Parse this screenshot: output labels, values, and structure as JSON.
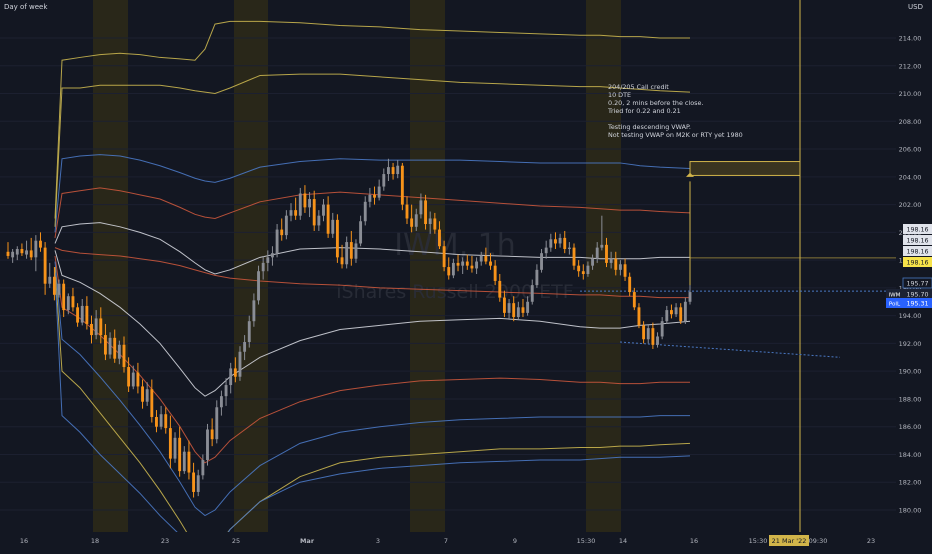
{
  "header": {
    "left_label": "Day of week",
    "currency": "USD"
  },
  "watermark": {
    "symbol": "IWM, 1h",
    "name": "iShares Russell 2000 ETF"
  },
  "annotation": {
    "lines": [
      "204/205 Call credit",
      "10 DTE",
      "0.20, 2 mins before the close.",
      "Tried for 0.22 and 0.21",
      "",
      "Testing descending VWAP.",
      "Not testing VWAP on M2K or RTY yet 1980"
    ]
  },
  "chart_data": {
    "type": "candlestick",
    "ylim": [
      178.9,
      216.2
    ],
    "y_ticks": [
      "180.00",
      "182.00",
      "184.00",
      "186.00",
      "188.00",
      "190.00",
      "192.00",
      "194.00",
      "196.00",
      "198.00",
      "200.00",
      "202.00",
      "204.00",
      "206.00",
      "208.00",
      "210.00",
      "212.00",
      "214.00"
    ],
    "x_ticks": [
      "16",
      "18",
      "23",
      "25",
      "Mar",
      "3",
      "7",
      "9",
      "15:30",
      "14",
      "16",
      "15:30",
      "21 Mar '22",
      "09:30",
      "23"
    ],
    "highlighted_x_label": "21 Mar '22",
    "price_labels": [
      {
        "value": "198.16",
        "style": "plain"
      },
      {
        "value": "198.16",
        "style": "plain"
      },
      {
        "value": "198.16",
        "style": "plain"
      },
      {
        "value": "198.16",
        "style": "yellow"
      },
      {
        "value": "195.77",
        "style": "outline"
      },
      {
        "value": "195.70",
        "prefix": "IWM",
        "style": "dark"
      },
      {
        "value": "195.31",
        "prefix": "PoIL",
        "style": "blue"
      }
    ],
    "candles": [
      {
        "o": 198.6,
        "h": 199.3,
        "l": 198.1,
        "c": 198.3,
        "up": false
      },
      {
        "o": 198.2,
        "h": 198.8,
        "l": 197.8,
        "c": 198.6,
        "up": true
      },
      {
        "o": 198.4,
        "h": 199.0,
        "l": 198.0,
        "c": 198.8,
        "up": true
      },
      {
        "o": 198.8,
        "h": 199.2,
        "l": 198.3,
        "c": 198.5,
        "up": false
      },
      {
        "o": 198.4,
        "h": 199.4,
        "l": 198.1,
        "c": 198.7,
        "up": true
      },
      {
        "o": 198.7,
        "h": 199.6,
        "l": 198.0,
        "c": 198.2,
        "up": false
      },
      {
        "o": 198.2,
        "h": 199.8,
        "l": 197.2,
        "c": 199.4,
        "up": true
      },
      {
        "o": 199.4,
        "h": 200.0,
        "l": 198.6,
        "c": 198.9,
        "up": false
      },
      {
        "o": 198.9,
        "h": 199.3,
        "l": 195.5,
        "c": 196.3,
        "up": false
      },
      {
        "o": 196.3,
        "h": 197.8,
        "l": 196.0,
        "c": 196.8,
        "up": true
      },
      {
        "o": 196.8,
        "h": 197.5,
        "l": 195.1,
        "c": 195.5,
        "up": false
      },
      {
        "o": 195.5,
        "h": 196.6,
        "l": 195.3,
        "c": 196.3,
        "up": true
      },
      {
        "o": 196.3,
        "h": 196.6,
        "l": 193.9,
        "c": 194.4,
        "up": false
      },
      {
        "o": 194.4,
        "h": 195.6,
        "l": 194.1,
        "c": 195.4,
        "up": true
      },
      {
        "o": 195.4,
        "h": 196.0,
        "l": 194.3,
        "c": 194.6,
        "up": false
      },
      {
        "o": 194.6,
        "h": 194.9,
        "l": 193.2,
        "c": 193.5,
        "up": false
      },
      {
        "o": 193.5,
        "h": 195.2,
        "l": 193.3,
        "c": 194.7,
        "up": true
      },
      {
        "o": 194.7,
        "h": 195.4,
        "l": 193.0,
        "c": 193.4,
        "up": false
      },
      {
        "o": 193.4,
        "h": 194.0,
        "l": 192.0,
        "c": 192.6,
        "up": false
      },
      {
        "o": 192.6,
        "h": 194.4,
        "l": 192.3,
        "c": 193.8,
        "up": true
      },
      {
        "o": 193.8,
        "h": 194.6,
        "l": 192.0,
        "c": 192.6,
        "up": false
      },
      {
        "o": 192.6,
        "h": 193.4,
        "l": 190.8,
        "c": 191.2,
        "up": false
      },
      {
        "o": 191.2,
        "h": 192.8,
        "l": 190.9,
        "c": 192.4,
        "up": true
      },
      {
        "o": 192.4,
        "h": 193.0,
        "l": 190.6,
        "c": 190.9,
        "up": false
      },
      {
        "o": 190.9,
        "h": 192.2,
        "l": 190.5,
        "c": 191.9,
        "up": true
      },
      {
        "o": 191.9,
        "h": 192.5,
        "l": 189.9,
        "c": 190.3,
        "up": false
      },
      {
        "o": 190.3,
        "h": 191.0,
        "l": 188.5,
        "c": 188.9,
        "up": false
      },
      {
        "o": 188.9,
        "h": 190.4,
        "l": 188.7,
        "c": 189.9,
        "up": true
      },
      {
        "o": 189.9,
        "h": 190.6,
        "l": 188.4,
        "c": 188.9,
        "up": false
      },
      {
        "o": 188.9,
        "h": 189.4,
        "l": 187.3,
        "c": 187.8,
        "up": false
      },
      {
        "o": 187.8,
        "h": 189.2,
        "l": 187.5,
        "c": 188.7,
        "up": true
      },
      {
        "o": 188.7,
        "h": 189.4,
        "l": 186.3,
        "c": 186.7,
        "up": false
      },
      {
        "o": 186.7,
        "h": 187.2,
        "l": 185.6,
        "c": 186.0,
        "up": false
      },
      {
        "o": 186.0,
        "h": 187.5,
        "l": 185.8,
        "c": 186.9,
        "up": true
      },
      {
        "o": 186.9,
        "h": 187.4,
        "l": 185.5,
        "c": 185.9,
        "up": false
      },
      {
        "o": 185.9,
        "h": 186.8,
        "l": 183.0,
        "c": 183.7,
        "up": false
      },
      {
        "o": 183.7,
        "h": 185.6,
        "l": 183.4,
        "c": 185.2,
        "up": true
      },
      {
        "o": 185.2,
        "h": 186.0,
        "l": 182.4,
        "c": 182.8,
        "up": false
      },
      {
        "o": 182.8,
        "h": 184.6,
        "l": 182.6,
        "c": 184.2,
        "up": true
      },
      {
        "o": 184.2,
        "h": 185.0,
        "l": 182.2,
        "c": 182.7,
        "up": false
      },
      {
        "o": 182.7,
        "h": 183.4,
        "l": 180.9,
        "c": 181.3,
        "up": false
      },
      {
        "o": 181.3,
        "h": 182.9,
        "l": 181.0,
        "c": 182.5,
        "up": true
      },
      {
        "o": 182.5,
        "h": 184.0,
        "l": 182.2,
        "c": 183.6,
        "up": true
      },
      {
        "o": 183.6,
        "h": 186.2,
        "l": 183.2,
        "c": 185.8,
        "up": true
      },
      {
        "o": 185.8,
        "h": 186.6,
        "l": 184.6,
        "c": 185.1,
        "up": false
      },
      {
        "o": 185.1,
        "h": 187.9,
        "l": 184.8,
        "c": 187.4,
        "up": true
      },
      {
        "o": 187.4,
        "h": 188.6,
        "l": 186.8,
        "c": 188.2,
        "up": true
      },
      {
        "o": 188.2,
        "h": 189.5,
        "l": 187.5,
        "c": 189.0,
        "up": true
      },
      {
        "o": 189.0,
        "h": 190.6,
        "l": 188.4,
        "c": 190.2,
        "up": true
      },
      {
        "o": 190.2,
        "h": 191.0,
        "l": 189.2,
        "c": 189.6,
        "up": false
      },
      {
        "o": 189.6,
        "h": 191.8,
        "l": 189.3,
        "c": 191.4,
        "up": true
      },
      {
        "o": 191.4,
        "h": 192.6,
        "l": 190.8,
        "c": 192.1,
        "up": true
      },
      {
        "o": 192.1,
        "h": 194.0,
        "l": 191.7,
        "c": 193.6,
        "up": true
      },
      {
        "o": 193.6,
        "h": 195.6,
        "l": 193.2,
        "c": 195.1,
        "up": true
      },
      {
        "o": 195.1,
        "h": 197.6,
        "l": 194.8,
        "c": 197.2,
        "up": true
      },
      {
        "o": 197.2,
        "h": 198.3,
        "l": 196.6,
        "c": 197.8,
        "up": true
      },
      {
        "o": 197.8,
        "h": 198.7,
        "l": 197.2,
        "c": 198.2,
        "up": true
      },
      {
        "o": 198.2,
        "h": 199.0,
        "l": 197.6,
        "c": 198.5,
        "up": true
      },
      {
        "o": 198.5,
        "h": 200.6,
        "l": 198.2,
        "c": 200.2,
        "up": true
      },
      {
        "o": 200.2,
        "h": 201.0,
        "l": 199.4,
        "c": 199.8,
        "up": false
      },
      {
        "o": 199.8,
        "h": 201.6,
        "l": 199.5,
        "c": 201.2,
        "up": true
      },
      {
        "o": 201.2,
        "h": 202.1,
        "l": 200.8,
        "c": 201.6,
        "up": true
      },
      {
        "o": 201.6,
        "h": 202.5,
        "l": 200.9,
        "c": 201.2,
        "up": false
      },
      {
        "o": 201.2,
        "h": 203.2,
        "l": 200.9,
        "c": 202.8,
        "up": true
      },
      {
        "o": 202.8,
        "h": 203.4,
        "l": 201.4,
        "c": 201.8,
        "up": false
      },
      {
        "o": 201.8,
        "h": 202.9,
        "l": 201.1,
        "c": 202.4,
        "up": true
      },
      {
        "o": 202.4,
        "h": 203.0,
        "l": 200.1,
        "c": 200.5,
        "up": false
      },
      {
        "o": 200.5,
        "h": 201.6,
        "l": 200.1,
        "c": 201.2,
        "up": true
      },
      {
        "o": 201.2,
        "h": 202.4,
        "l": 200.8,
        "c": 202.0,
        "up": true
      },
      {
        "o": 202.0,
        "h": 202.6,
        "l": 199.6,
        "c": 199.9,
        "up": false
      },
      {
        "o": 199.9,
        "h": 201.4,
        "l": 199.6,
        "c": 200.9,
        "up": true
      },
      {
        "o": 200.9,
        "h": 201.3,
        "l": 197.8,
        "c": 198.2,
        "up": false
      },
      {
        "o": 198.2,
        "h": 199.1,
        "l": 197.4,
        "c": 197.7,
        "up": false
      },
      {
        "o": 197.7,
        "h": 199.7,
        "l": 197.4,
        "c": 199.3,
        "up": true
      },
      {
        "o": 199.3,
        "h": 200.1,
        "l": 197.6,
        "c": 198.1,
        "up": false
      },
      {
        "o": 198.1,
        "h": 199.5,
        "l": 197.8,
        "c": 199.2,
        "up": true
      },
      {
        "o": 199.2,
        "h": 201.2,
        "l": 199.0,
        "c": 200.8,
        "up": true
      },
      {
        "o": 200.8,
        "h": 202.6,
        "l": 200.5,
        "c": 202.2,
        "up": true
      },
      {
        "o": 202.2,
        "h": 203.2,
        "l": 201.8,
        "c": 202.7,
        "up": true
      },
      {
        "o": 202.7,
        "h": 203.3,
        "l": 202.0,
        "c": 202.5,
        "up": false
      },
      {
        "o": 202.5,
        "h": 203.8,
        "l": 202.3,
        "c": 203.3,
        "up": true
      },
      {
        "o": 203.3,
        "h": 204.6,
        "l": 203.0,
        "c": 204.2,
        "up": true
      },
      {
        "o": 204.2,
        "h": 205.3,
        "l": 203.7,
        "c": 204.7,
        "up": true
      },
      {
        "o": 204.7,
        "h": 205.0,
        "l": 203.8,
        "c": 204.2,
        "up": false
      },
      {
        "o": 204.2,
        "h": 205.2,
        "l": 203.9,
        "c": 204.8,
        "up": true
      },
      {
        "o": 204.8,
        "h": 205.0,
        "l": 201.6,
        "c": 202.0,
        "up": false
      },
      {
        "o": 202.0,
        "h": 202.6,
        "l": 200.6,
        "c": 201.0,
        "up": false
      },
      {
        "o": 201.0,
        "h": 202.0,
        "l": 200.0,
        "c": 200.4,
        "up": false
      },
      {
        "o": 200.4,
        "h": 201.7,
        "l": 200.1,
        "c": 201.3,
        "up": true
      },
      {
        "o": 201.3,
        "h": 202.8,
        "l": 201.0,
        "c": 202.3,
        "up": true
      },
      {
        "o": 202.3,
        "h": 202.7,
        "l": 200.2,
        "c": 200.6,
        "up": false
      },
      {
        "o": 200.6,
        "h": 201.5,
        "l": 199.9,
        "c": 201.0,
        "up": true
      },
      {
        "o": 201.0,
        "h": 201.4,
        "l": 199.9,
        "c": 200.2,
        "up": false
      },
      {
        "o": 200.2,
        "h": 200.8,
        "l": 198.8,
        "c": 199.0,
        "up": false
      },
      {
        "o": 199.0,
        "h": 199.4,
        "l": 197.2,
        "c": 197.5,
        "up": false
      },
      {
        "o": 197.5,
        "h": 198.2,
        "l": 196.6,
        "c": 196.9,
        "up": false
      },
      {
        "o": 196.9,
        "h": 198.1,
        "l": 196.7,
        "c": 197.8,
        "up": true
      },
      {
        "o": 197.8,
        "h": 198.4,
        "l": 197.2,
        "c": 197.6,
        "up": false
      },
      {
        "o": 197.6,
        "h": 198.2,
        "l": 197.0,
        "c": 197.9,
        "up": true
      },
      {
        "o": 197.9,
        "h": 198.4,
        "l": 197.3,
        "c": 197.6,
        "up": false
      },
      {
        "o": 197.6,
        "h": 198.3,
        "l": 197.1,
        "c": 197.4,
        "up": false
      },
      {
        "o": 197.4,
        "h": 198.2,
        "l": 197.0,
        "c": 197.9,
        "up": true
      },
      {
        "o": 197.9,
        "h": 198.6,
        "l": 197.6,
        "c": 198.3,
        "up": true
      },
      {
        "o": 198.3,
        "h": 198.9,
        "l": 197.7,
        "c": 197.9,
        "up": false
      },
      {
        "o": 197.9,
        "h": 198.5,
        "l": 197.3,
        "c": 197.6,
        "up": false
      },
      {
        "o": 197.6,
        "h": 198.0,
        "l": 196.2,
        "c": 196.5,
        "up": false
      },
      {
        "o": 196.5,
        "h": 197.0,
        "l": 195.0,
        "c": 195.3,
        "up": false
      },
      {
        "o": 195.3,
        "h": 195.8,
        "l": 193.9,
        "c": 194.2,
        "up": false
      },
      {
        "o": 194.2,
        "h": 195.2,
        "l": 193.8,
        "c": 194.9,
        "up": true
      },
      {
        "o": 194.9,
        "h": 195.4,
        "l": 193.6,
        "c": 193.9,
        "up": false
      },
      {
        "o": 193.9,
        "h": 195.0,
        "l": 193.7,
        "c": 194.6,
        "up": true
      },
      {
        "o": 194.6,
        "h": 195.2,
        "l": 193.9,
        "c": 194.2,
        "up": false
      },
      {
        "o": 194.2,
        "h": 195.4,
        "l": 194.0,
        "c": 195.0,
        "up": true
      },
      {
        "o": 195.0,
        "h": 196.6,
        "l": 194.8,
        "c": 196.2,
        "up": true
      },
      {
        "o": 196.2,
        "h": 197.7,
        "l": 196.0,
        "c": 197.3,
        "up": true
      },
      {
        "o": 197.3,
        "h": 198.8,
        "l": 197.1,
        "c": 198.5,
        "up": true
      },
      {
        "o": 198.5,
        "h": 199.4,
        "l": 198.1,
        "c": 198.9,
        "up": true
      },
      {
        "o": 198.9,
        "h": 199.9,
        "l": 198.6,
        "c": 199.5,
        "up": true
      },
      {
        "o": 199.5,
        "h": 200.0,
        "l": 198.8,
        "c": 199.2,
        "up": false
      },
      {
        "o": 199.2,
        "h": 199.9,
        "l": 198.9,
        "c": 199.6,
        "up": true
      },
      {
        "o": 199.6,
        "h": 200.1,
        "l": 198.5,
        "c": 198.8,
        "up": false
      },
      {
        "o": 198.8,
        "h": 199.3,
        "l": 198.4,
        "c": 198.9,
        "up": true
      },
      {
        "o": 198.9,
        "h": 199.2,
        "l": 197.3,
        "c": 197.6,
        "up": false
      },
      {
        "o": 197.6,
        "h": 198.0,
        "l": 196.8,
        "c": 197.2,
        "up": false
      },
      {
        "o": 197.2,
        "h": 197.7,
        "l": 196.6,
        "c": 197.0,
        "up": false
      },
      {
        "o": 197.0,
        "h": 197.9,
        "l": 196.8,
        "c": 197.6,
        "up": true
      },
      {
        "o": 197.6,
        "h": 198.4,
        "l": 197.3,
        "c": 198.1,
        "up": true
      },
      {
        "o": 198.1,
        "h": 199.3,
        "l": 197.8,
        "c": 198.9,
        "up": true
      },
      {
        "o": 198.9,
        "h": 201.2,
        "l": 198.7,
        "c": 199.1,
        "up": true
      },
      {
        "o": 199.1,
        "h": 199.6,
        "l": 197.5,
        "c": 197.8,
        "up": false
      },
      {
        "o": 197.8,
        "h": 198.6,
        "l": 197.4,
        "c": 198.1,
        "up": true
      },
      {
        "o": 198.1,
        "h": 198.6,
        "l": 196.9,
        "c": 197.3,
        "up": false
      },
      {
        "o": 197.3,
        "h": 198.0,
        "l": 196.9,
        "c": 197.7,
        "up": true
      },
      {
        "o": 197.7,
        "h": 198.1,
        "l": 196.5,
        "c": 196.8,
        "up": false
      },
      {
        "o": 196.8,
        "h": 197.1,
        "l": 195.4,
        "c": 195.7,
        "up": false
      },
      {
        "o": 195.7,
        "h": 196.0,
        "l": 194.4,
        "c": 194.6,
        "up": false
      },
      {
        "o": 194.6,
        "h": 194.9,
        "l": 193.1,
        "c": 193.3,
        "up": false
      },
      {
        "o": 193.3,
        "h": 193.6,
        "l": 192.0,
        "c": 192.3,
        "up": false
      },
      {
        "o": 192.3,
        "h": 193.4,
        "l": 192.0,
        "c": 193.1,
        "up": true
      },
      {
        "o": 193.1,
        "h": 193.5,
        "l": 191.6,
        "c": 191.9,
        "up": false
      },
      {
        "o": 191.9,
        "h": 192.8,
        "l": 191.7,
        "c": 192.5,
        "up": true
      },
      {
        "o": 192.5,
        "h": 193.9,
        "l": 192.3,
        "c": 193.6,
        "up": true
      },
      {
        "o": 193.6,
        "h": 194.7,
        "l": 193.4,
        "c": 194.4,
        "up": true
      },
      {
        "o": 194.4,
        "h": 194.8,
        "l": 193.8,
        "c": 194.1,
        "up": false
      },
      {
        "o": 194.1,
        "h": 194.9,
        "l": 193.9,
        "c": 194.6,
        "up": true
      },
      {
        "o": 194.6,
        "h": 194.9,
        "l": 193.4,
        "c": 193.6,
        "up": false
      },
      {
        "o": 193.6,
        "h": 195.3,
        "l": 193.4,
        "c": 195.0,
        "up": true
      },
      {
        "o": 195.0,
        "h": 196.2,
        "l": 194.8,
        "c": 195.7,
        "up": true
      }
    ]
  }
}
